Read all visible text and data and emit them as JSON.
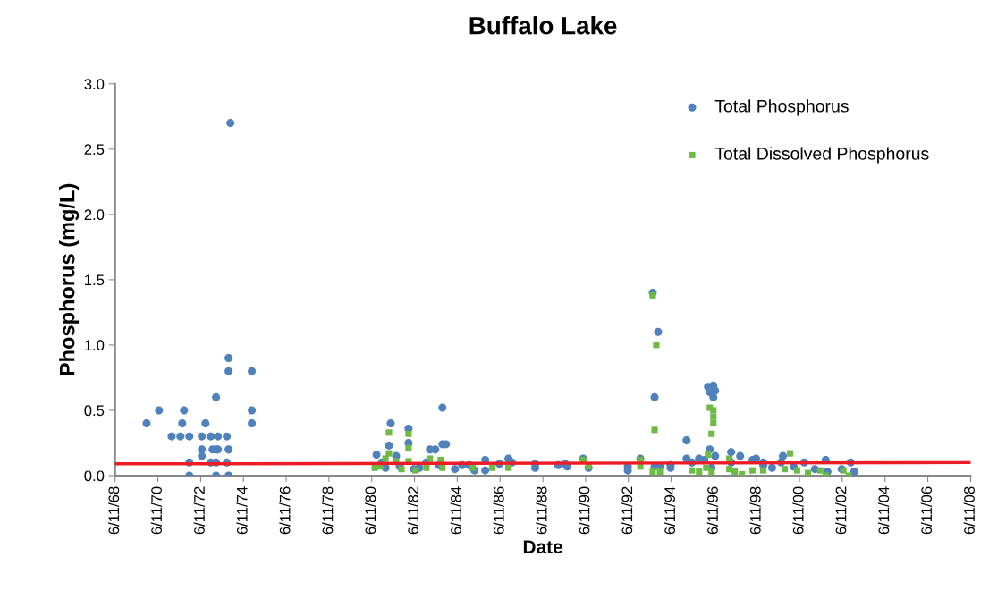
{
  "chart_data": {
    "type": "scatter",
    "title": "Buffalo Lake",
    "xlabel": "Date",
    "ylabel": "Phosphorus (mg/L)",
    "xlim": [
      "1968-06-11",
      "2008-06-11"
    ],
    "xticks": [
      {
        "value": "1968-06-11",
        "label": "6/11/68"
      },
      {
        "value": "1970-06-11",
        "label": "6/11/70"
      },
      {
        "value": "1972-06-11",
        "label": "6/11/72"
      },
      {
        "value": "1974-06-11",
        "label": "6/11/74"
      },
      {
        "value": "1976-06-11",
        "label": "6/11/76"
      },
      {
        "value": "1978-06-11",
        "label": "6/11/78"
      },
      {
        "value": "1980-06-11",
        "label": "6/11/80"
      },
      {
        "value": "1982-06-11",
        "label": "6/11/82"
      },
      {
        "value": "1984-06-11",
        "label": "6/11/84"
      },
      {
        "value": "1986-06-11",
        "label": "6/11/86"
      },
      {
        "value": "1988-06-11",
        "label": "6/11/88"
      },
      {
        "value": "1990-06-11",
        "label": "6/11/90"
      },
      {
        "value": "1992-06-11",
        "label": "6/11/92"
      },
      {
        "value": "1994-06-11",
        "label": "6/11/94"
      },
      {
        "value": "1996-06-11",
        "label": "6/11/96"
      },
      {
        "value": "1998-06-11",
        "label": "6/11/98"
      },
      {
        "value": "2000-06-11",
        "label": "6/11/00"
      },
      {
        "value": "2002-06-11",
        "label": "6/11/02"
      },
      {
        "value": "2004-06-11",
        "label": "6/11/04"
      },
      {
        "value": "2006-06-11",
        "label": "6/11/06"
      },
      {
        "value": "2008-06-11",
        "label": "6/11/08"
      }
    ],
    "ylim": [
      0,
      3
    ],
    "yticks": [
      {
        "value": 0,
        "label": "0.0"
      },
      {
        "value": 0.5,
        "label": "0.5"
      },
      {
        "value": 1,
        "label": "1.0"
      },
      {
        "value": 1.5,
        "label": "1.5"
      },
      {
        "value": 2,
        "label": "2.0"
      },
      {
        "value": 2.5,
        "label": "2.5"
      },
      {
        "value": 3,
        "label": "3.0"
      }
    ],
    "grid": false,
    "legend": "top right",
    "series": [
      {
        "name": "Total Phosphorus",
        "marker": "circle",
        "color": "#4f81bd",
        "x": [
          "1969-12",
          "1970-07",
          "1971-02",
          "1971-08",
          "1971-09",
          "1971-07",
          "1971-12",
          "1971-12",
          "1971-12",
          "1972-07",
          "1972-09",
          "1972-07",
          "1972-07",
          "1972-12",
          "1972-12",
          "1973-01",
          "1973-03",
          "1973-03",
          "1973-03",
          "1973-03",
          "1973-04",
          "1973-04",
          "1973-09",
          "1973-09",
          "1973-10",
          "1973-10",
          "1973-10",
          "1973-10",
          "1973-11",
          "1974-11",
          "1974-11",
          "1974-11",
          "1980-09",
          "1981-04",
          "1981-05",
          "1981-08",
          "1982-03",
          "1982-03",
          "1983-03",
          "1983-06",
          "1983-10",
          "1983-10",
          "1983-12",
          "1980-12",
          "1981-02",
          "1981-10",
          "1982-06",
          "1982-09",
          "1983-01",
          "1983-08",
          "1984-05",
          "1984-09",
          "1985-01",
          "1985-04",
          "1985-10",
          "1985-10",
          "1986-06",
          "1986-11",
          "1987-01",
          "1988-02",
          "1988-02",
          "1989-03",
          "1989-07",
          "1989-08",
          "1990-05",
          "1990-08",
          "1992-06",
          "1992-06",
          "1993-01",
          "1993-08",
          "1993-11",
          "1993-09",
          "1993-09",
          "1993-12",
          "1994-06",
          "1994-06",
          "1995-03",
          "1995-03",
          "1995-06",
          "1995-10",
          "1996-01",
          "1996-04",
          "1996-03",
          "1996-06",
          "1996-07",
          "1996-04",
          "1996-06",
          "1996-07",
          "1996-05",
          "1997-04",
          "1997-04",
          "1997-09",
          "1998-04",
          "1998-06",
          "1998-10",
          "1998-10",
          "1999-09",
          "1999-08",
          "2000-09",
          "2001-09",
          "2001-10",
          "2002-11",
          "2003-01",
          "1999-03",
          "2000-03",
          "2001-03",
          "2002-06"
        ],
        "values": [
          0.4,
          0.5,
          0.3,
          0.4,
          0.5,
          0.3,
          0.3,
          0.1,
          0.0,
          0.3,
          0.4,
          0.2,
          0.15,
          0.3,
          0.1,
          0.2,
          0.6,
          0.2,
          0.1,
          0.0,
          0.3,
          0.2,
          0.3,
          0.1,
          0.9,
          0.8,
          0.2,
          0.0,
          2.7,
          0.8,
          0.5,
          0.4,
          0.16,
          0.23,
          0.4,
          0.15,
          0.36,
          0.25,
          0.2,
          0.2,
          0.52,
          0.24,
          0.24,
          0.1,
          0.06,
          0.07,
          0.05,
          0.06,
          0.1,
          0.08,
          0.05,
          0.08,
          0.08,
          0.04,
          0.12,
          0.04,
          0.09,
          0.13,
          0.1,
          0.09,
          0.06,
          0.08,
          0.09,
          0.07,
          0.13,
          0.06,
          0.07,
          0.04,
          0.13,
          1.4,
          1.1,
          0.6,
          0.07,
          0.07,
          0.08,
          0.06,
          0.27,
          0.13,
          0.1,
          0.13,
          0.12,
          0.2,
          0.68,
          0.69,
          0.65,
          0.64,
          0.6,
          0.15,
          0.06,
          0.18,
          0.1,
          0.15,
          0.12,
          0.13,
          0.08,
          0.1,
          0.15,
          0.1,
          0.1,
          0.12,
          0.03,
          0.1,
          0.03,
          0.06,
          0.07,
          0.05,
          0.05
        ]
      },
      {
        "name": "Total Dissolved Phosphorus",
        "marker": "square",
        "color": "#6dbb45",
        "x": [
          "1980-08",
          "1980-11",
          "1981-02",
          "1981-04",
          "1981-04",
          "1981-08",
          "1981-11",
          "1982-03",
          "1982-03",
          "1982-03",
          "1982-07",
          "1983-01",
          "1983-03",
          "1983-09",
          "1983-10",
          "1985-03",
          "1986-02",
          "1986-11",
          "1990-05",
          "1990-08",
          "1993-01",
          "1993-01",
          "1993-08",
          "1993-10",
          "1993-09",
          "1993-08",
          "1993-12",
          "1995-06",
          "1995-10",
          "1996-02",
          "1996-03",
          "1996-04",
          "1996-06",
          "1996-06",
          "1996-06",
          "1996-05",
          "1996-05",
          "1997-03",
          "1997-03",
          "1997-06",
          "1997-10",
          "1998-04",
          "1998-10",
          "1999-10",
          "2000-01",
          "2000-05",
          "2000-11",
          "2001-06",
          "2001-09",
          "2002-07",
          "2002-10"
        ],
        "values": [
          0.06,
          0.07,
          0.13,
          0.33,
          0.17,
          0.11,
          0.05,
          0.32,
          0.21,
          0.11,
          0.04,
          0.06,
          0.13,
          0.12,
          0.06,
          0.06,
          0.06,
          0.06,
          0.12,
          0.07,
          0.12,
          0.07,
          1.38,
          1.0,
          0.35,
          0.03,
          0.03,
          0.04,
          0.03,
          0.06,
          0.16,
          0.52,
          0.5,
          0.45,
          0.4,
          0.32,
          0.03,
          0.13,
          0.05,
          0.03,
          0.01,
          0.04,
          0.04,
          0.05,
          0.17,
          0.04,
          0.02,
          0.04,
          0.0,
          0.04,
          0.0
        ]
      },
      {
        "type": "line",
        "color": "#ed1c24",
        "line_style": "solid",
        "marker": "none",
        "x": [
          "1968-06-11",
          "2008-06-11"
        ],
        "values": [
          0.09,
          0.1
        ]
      }
    ]
  }
}
